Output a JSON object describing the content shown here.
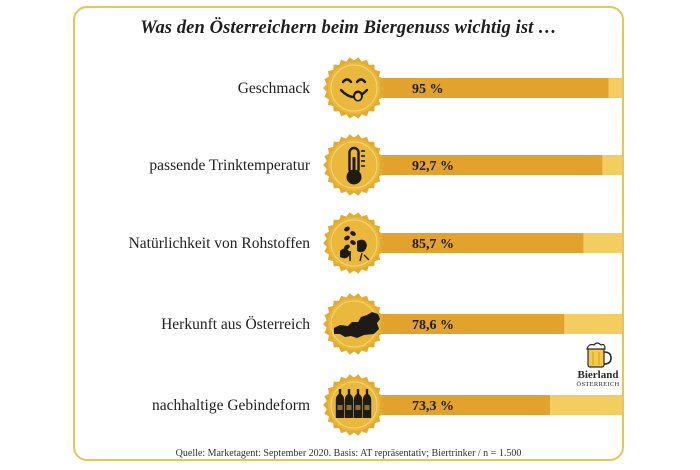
{
  "title": "Was den Österreichern beim Biergenuss wichtig ist …",
  "source": "Quelle: Marketagent: September 2020. Basis: AT repräsentativ; Biertrinker / n = 1.500",
  "logo": {
    "word": "Bierland",
    "sub": "ÖSTERREICH"
  },
  "colors": {
    "frame": "#e9c459",
    "bar": "#e2a22e",
    "track": "#f3cd5f",
    "medal": "#e9b83c",
    "icon": "#1e1a14"
  },
  "chart_data": {
    "type": "bar",
    "orientation": "horizontal",
    "xlim": [
      0,
      100
    ],
    "categories": [
      "Geschmack",
      "passende Trinktemperatur",
      "Natürlichkeit von Rohstoffen",
      "Herkunft aus Österreich",
      "nachhaltige Gebindeform"
    ],
    "values": [
      95,
      92.7,
      85.7,
      78.6,
      73.3
    ],
    "value_labels": [
      "95 %",
      "92,7 %",
      "85,7 %",
      "78,6 %",
      "73,3 %"
    ],
    "icons": [
      "smiley-tongue-icon",
      "thermometer-icon",
      "grain-hops-icon",
      "austria-map-icon",
      "beer-bottles-icon"
    ]
  }
}
